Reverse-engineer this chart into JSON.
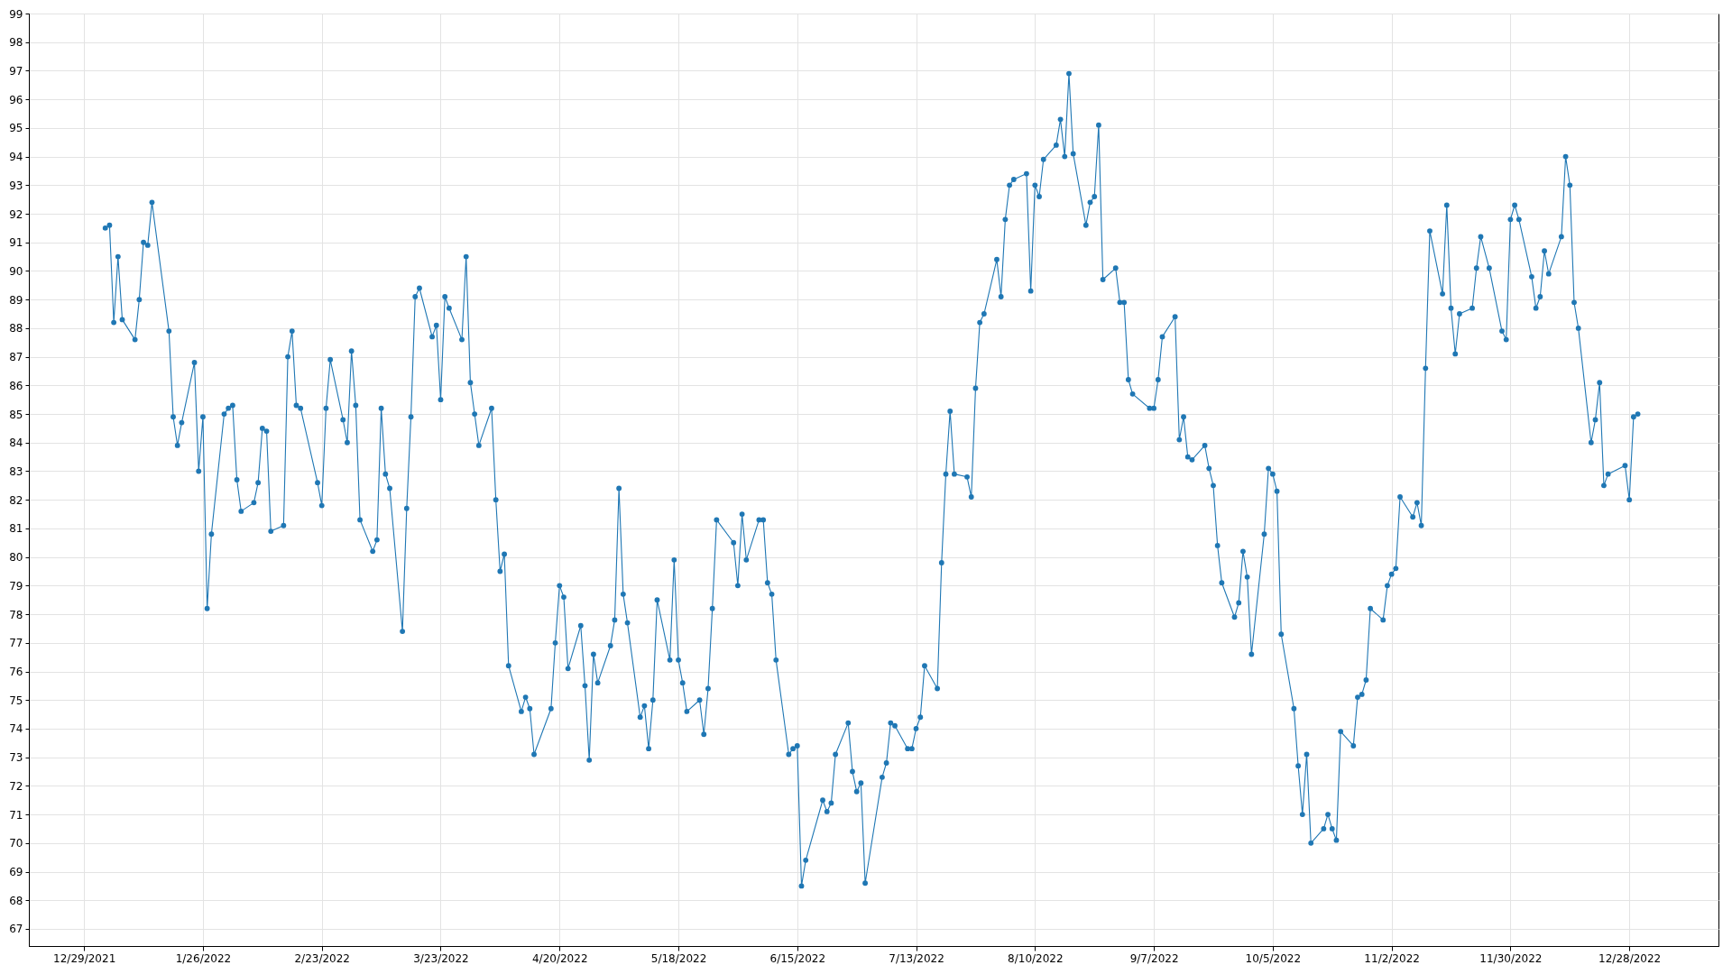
{
  "chart_data": {
    "type": "line",
    "x": [
      "2022-01-03",
      "2022-01-04",
      "2022-01-05",
      "2022-01-06",
      "2022-01-07",
      "2022-01-10",
      "2022-01-11",
      "2022-01-12",
      "2022-01-13",
      "2022-01-14",
      "2022-01-18",
      "2022-01-19",
      "2022-01-20",
      "2022-01-21",
      "2022-01-24",
      "2022-01-25",
      "2022-01-26",
      "2022-01-27",
      "2022-01-28",
      "2022-01-31",
      "2022-02-01",
      "2022-02-02",
      "2022-02-03",
      "2022-02-04",
      "2022-02-07",
      "2022-02-08",
      "2022-02-09",
      "2022-02-10",
      "2022-02-11",
      "2022-02-14",
      "2022-02-15",
      "2022-02-16",
      "2022-02-17",
      "2022-02-18",
      "2022-02-22",
      "2022-02-23",
      "2022-02-24",
      "2022-02-25",
      "2022-02-28",
      "2022-03-01",
      "2022-03-02",
      "2022-03-03",
      "2022-03-04",
      "2022-03-07",
      "2022-03-08",
      "2022-03-09",
      "2022-03-10",
      "2022-03-11",
      "2022-03-14",
      "2022-03-15",
      "2022-03-16",
      "2022-03-17",
      "2022-03-18",
      "2022-03-21",
      "2022-03-22",
      "2022-03-23",
      "2022-03-24",
      "2022-03-25",
      "2022-03-28",
      "2022-03-29",
      "2022-03-30",
      "2022-03-31",
      "2022-04-01",
      "2022-04-04",
      "2022-04-05",
      "2022-04-06",
      "2022-04-07",
      "2022-04-08",
      "2022-04-11",
      "2022-04-12",
      "2022-04-13",
      "2022-04-14",
      "2022-04-18",
      "2022-04-19",
      "2022-04-20",
      "2022-04-21",
      "2022-04-22",
      "2022-04-25",
      "2022-04-26",
      "2022-04-27",
      "2022-04-28",
      "2022-04-29",
      "2022-05-02",
      "2022-05-03",
      "2022-05-04",
      "2022-05-05",
      "2022-05-06",
      "2022-05-09",
      "2022-05-10",
      "2022-05-11",
      "2022-05-12",
      "2022-05-13",
      "2022-05-16",
      "2022-05-17",
      "2022-05-18",
      "2022-05-19",
      "2022-05-20",
      "2022-05-23",
      "2022-05-24",
      "2022-05-25",
      "2022-05-26",
      "2022-05-27",
      "2022-05-31",
      "2022-06-01",
      "2022-06-02",
      "2022-06-03",
      "2022-06-06",
      "2022-06-07",
      "2022-06-08",
      "2022-06-09",
      "2022-06-10",
      "2022-06-13",
      "2022-06-14",
      "2022-06-15",
      "2022-06-16",
      "2022-06-17",
      "2022-06-21",
      "2022-06-22",
      "2022-06-23",
      "2022-06-24",
      "2022-06-27",
      "2022-06-28",
      "2022-06-29",
      "2022-06-30",
      "2022-07-01",
      "2022-07-05",
      "2022-07-06",
      "2022-07-07",
      "2022-07-08",
      "2022-07-11",
      "2022-07-12",
      "2022-07-13",
      "2022-07-14",
      "2022-07-15",
      "2022-07-18",
      "2022-07-19",
      "2022-07-20",
      "2022-07-21",
      "2022-07-22",
      "2022-07-25",
      "2022-07-26",
      "2022-07-27",
      "2022-07-28",
      "2022-07-29",
      "2022-08-01",
      "2022-08-02",
      "2022-08-03",
      "2022-08-04",
      "2022-08-05",
      "2022-08-08",
      "2022-08-09",
      "2022-08-10",
      "2022-08-11",
      "2022-08-12",
      "2022-08-15",
      "2022-08-16",
      "2022-08-17",
      "2022-08-18",
      "2022-08-19",
      "2022-08-22",
      "2022-08-23",
      "2022-08-24",
      "2022-08-25",
      "2022-08-26",
      "2022-08-29",
      "2022-08-30",
      "2022-08-31",
      "2022-09-01",
      "2022-09-02",
      "2022-09-06",
      "2022-09-07",
      "2022-09-08",
      "2022-09-09",
      "2022-09-12",
      "2022-09-13",
      "2022-09-14",
      "2022-09-15",
      "2022-09-16",
      "2022-09-19",
      "2022-09-20",
      "2022-09-21",
      "2022-09-22",
      "2022-09-23",
      "2022-09-26",
      "2022-09-27",
      "2022-09-28",
      "2022-09-29",
      "2022-09-30",
      "2022-10-03",
      "2022-10-04",
      "2022-10-05",
      "2022-10-06",
      "2022-10-07",
      "2022-10-10",
      "2022-10-11",
      "2022-10-12",
      "2022-10-13",
      "2022-10-14",
      "2022-10-17",
      "2022-10-18",
      "2022-10-19",
      "2022-10-20",
      "2022-10-21",
      "2022-10-24",
      "2022-10-25",
      "2022-10-26",
      "2022-10-27",
      "2022-10-28",
      "2022-10-31",
      "2022-11-01",
      "2022-11-02",
      "2022-11-03",
      "2022-11-04",
      "2022-11-07",
      "2022-11-08",
      "2022-11-09",
      "2022-11-10",
      "2022-11-11",
      "2022-11-14",
      "2022-11-15",
      "2022-11-16",
      "2022-11-17",
      "2022-11-18",
      "2022-11-21",
      "2022-11-22",
      "2022-11-23",
      "2022-11-25",
      "2022-11-28",
      "2022-11-29",
      "2022-11-30",
      "2022-12-01",
      "2022-12-02",
      "2022-12-05",
      "2022-12-06",
      "2022-12-07",
      "2022-12-08",
      "2022-12-09",
      "2022-12-12",
      "2022-12-13",
      "2022-12-14",
      "2022-12-15",
      "2022-12-16",
      "2022-12-19",
      "2022-12-20",
      "2022-12-21",
      "2022-12-22",
      "2022-12-23",
      "2022-12-27",
      "2022-12-28",
      "2022-12-29",
      "2022-12-30"
    ],
    "series": [
      {
        "color": "#1f77b4",
        "values": [
          91.5,
          91.6,
          88.2,
          90.5,
          88.3,
          87.6,
          89.0,
          91.0,
          90.9,
          92.4,
          87.9,
          84.9,
          83.9,
          84.7,
          86.8,
          83.0,
          84.9,
          78.2,
          80.8,
          85.0,
          85.2,
          85.3,
          82.7,
          81.6,
          81.9,
          82.6,
          84.5,
          84.4,
          80.9,
          81.1,
          87.0,
          87.9,
          85.3,
          85.2,
          82.6,
          81.8,
          85.2,
          86.9,
          84.8,
          84.0,
          87.2,
          85.3,
          81.3,
          80.2,
          80.6,
          85.2,
          82.9,
          82.4,
          77.4,
          81.7,
          84.9,
          89.1,
          89.4,
          87.7,
          88.1,
          85.5,
          89.1,
          88.7,
          87.6,
          90.5,
          86.1,
          85.0,
          83.9,
          85.2,
          82.0,
          79.5,
          80.1,
          76.2,
          74.6,
          75.1,
          74.7,
          73.1,
          74.7,
          77.0,
          79.0,
          78.6,
          76.1,
          77.6,
          75.5,
          72.9,
          76.6,
          75.6,
          76.9,
          77.8,
          82.4,
          78.7,
          77.7,
          74.4,
          74.8,
          73.3,
          75.0,
          78.5,
          76.4,
          79.9,
          76.4,
          75.6,
          74.6,
          75.0,
          73.8,
          75.4,
          78.2,
          81.3,
          80.5,
          79.0,
          81.5,
          79.9,
          81.3,
          81.3,
          79.1,
          78.7,
          76.4,
          73.1,
          73.3,
          73.4,
          68.5,
          69.4,
          71.5,
          71.1,
          71.4,
          73.1,
          74.2,
          72.5,
          71.8,
          72.1,
          68.6,
          72.3,
          72.8,
          74.2,
          74.1,
          73.3,
          73.3,
          74.0,
          74.4,
          76.2,
          75.4,
          79.8,
          82.9,
          85.1,
          82.9,
          82.8,
          82.1,
          85.9,
          88.2,
          88.5,
          90.4,
          89.1,
          91.8,
          93.0,
          93.2,
          93.4,
          89.3,
          93.0,
          92.6,
          93.9,
          94.4,
          95.3,
          94.0,
          96.9,
          94.1,
          91.6,
          92.4,
          92.6,
          95.1,
          89.7,
          90.1,
          88.9,
          88.9,
          86.2,
          85.7,
          85.2,
          85.2,
          86.2,
          87.7,
          88.4,
          84.1,
          84.9,
          83.5,
          83.4,
          83.9,
          83.1,
          82.5,
          80.4,
          79.1,
          77.9,
          78.4,
          80.2,
          79.3,
          76.6,
          80.8,
          83.1,
          82.9,
          82.3,
          77.3,
          74.7,
          72.7,
          71.0,
          73.1,
          70.0,
          70.5,
          71.0,
          70.5,
          70.1,
          73.9,
          73.4,
          75.1,
          75.2,
          75.7,
          78.2,
          77.8,
          79.0,
          79.4,
          79.6,
          82.1,
          81.4,
          81.9,
          81.1,
          86.6,
          91.4,
          89.2,
          92.3,
          88.7,
          87.1,
          88.5,
          88.7,
          90.1,
          91.2,
          90.1,
          87.9,
          87.6,
          91.8,
          92.3,
          91.8,
          89.8,
          88.7,
          89.1,
          90.7,
          89.9,
          91.2,
          94.0,
          93.0,
          88.9,
          88.0,
          84.0,
          84.8,
          86.1,
          82.5,
          82.9,
          83.2,
          82.0,
          84.9,
          85.0
        ]
      }
    ],
    "xlim": [
      "2021-12-16",
      "2023-01-18"
    ],
    "xticks": [
      {
        "value": "2021-12-29",
        "label": "12/29/2021"
      },
      {
        "value": "2022-01-26",
        "label": "1/26/2022"
      },
      {
        "value": "2022-02-23",
        "label": "2/23/2022"
      },
      {
        "value": "2022-03-23",
        "label": "3/23/2022"
      },
      {
        "value": "2022-04-20",
        "label": "4/20/2022"
      },
      {
        "value": "2022-05-18",
        "label": "5/18/2022"
      },
      {
        "value": "2022-06-15",
        "label": "6/15/2022"
      },
      {
        "value": "2022-07-13",
        "label": "7/13/2022"
      },
      {
        "value": "2022-08-10",
        "label": "8/10/2022"
      },
      {
        "value": "2022-09-07",
        "label": "9/7/2022"
      },
      {
        "value": "2022-10-05",
        "label": "10/5/2022"
      },
      {
        "value": "2022-11-02",
        "label": "11/2/2022"
      },
      {
        "value": "2022-11-30",
        "label": "11/30/2022"
      },
      {
        "value": "2022-12-28",
        "label": "12/28/2022"
      }
    ],
    "ylim": [
      66.4,
      99
    ],
    "yticks": [
      67,
      68,
      69,
      70,
      71,
      72,
      73,
      74,
      75,
      76,
      77,
      78,
      79,
      80,
      81,
      82,
      83,
      84,
      85,
      86,
      87,
      88,
      89,
      90,
      91,
      92,
      93,
      94,
      95,
      96,
      97,
      98,
      99
    ],
    "grid": true,
    "marker": "circle",
    "line_style": "solid"
  }
}
